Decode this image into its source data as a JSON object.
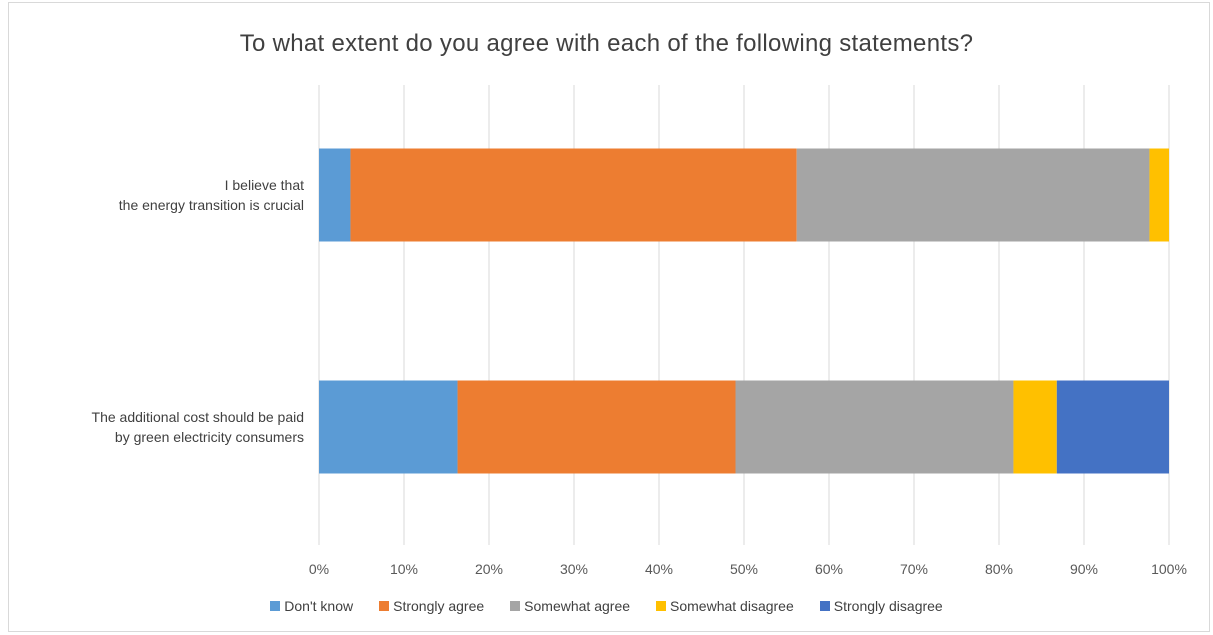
{
  "chart_data": {
    "type": "bar",
    "orientation": "horizontal",
    "stacked": true,
    "percent_stacked": true,
    "title": "To what extent do you agree with each of the following statements?",
    "categories": [
      [
        "I believe that",
        "the energy transition is crucial"
      ],
      [
        "The additional cost should be paid",
        "by green electricity consumers"
      ]
    ],
    "series": [
      {
        "name": "Don't know",
        "color": "#5b9bd5",
        "values": [
          3.7,
          16.3
        ]
      },
      {
        "name": "Strongly agree",
        "color": "#ed7d31",
        "values": [
          52.5,
          32.7
        ]
      },
      {
        "name": "Somewhat agree",
        "color": "#a5a5a5",
        "values": [
          41.5,
          32.7
        ]
      },
      {
        "name": "Somewhat disagree",
        "color": "#ffc000",
        "values": [
          2.3,
          5.1
        ]
      },
      {
        "name": "Strongly disagree",
        "color": "#4472c4",
        "values": [
          0,
          13.2
        ]
      }
    ],
    "xlim": [
      0,
      100
    ],
    "xticks": [
      "0%",
      "10%",
      "20%",
      "30%",
      "40%",
      "50%",
      "60%",
      "70%",
      "80%",
      "90%",
      "100%"
    ],
    "grid": true,
    "legend_position": "bottom"
  }
}
